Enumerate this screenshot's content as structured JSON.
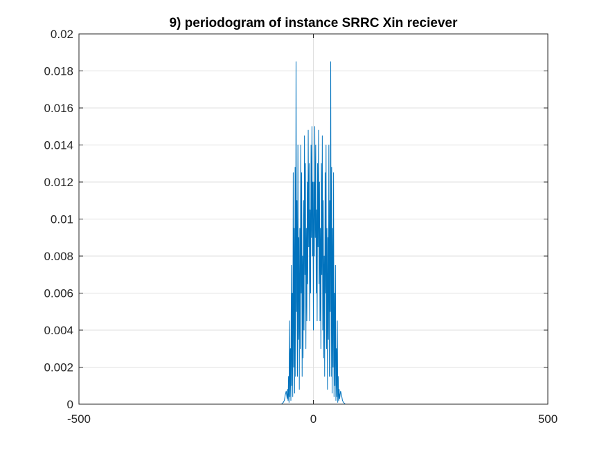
{
  "chart_data": {
    "type": "line",
    "title": "9) periodogram of instance SRRC Xin reciever",
    "xlabel": "",
    "ylabel": "",
    "xlim": [
      -500,
      500
    ],
    "ylim": [
      0,
      0.02
    ],
    "x_ticks": [
      -500,
      0,
      500
    ],
    "x_tick_labels": [
      "-500",
      "0",
      "500"
    ],
    "y_ticks": [
      0,
      0.002,
      0.004,
      0.006,
      0.008,
      0.01,
      0.012,
      0.014,
      0.016,
      0.018,
      0.02
    ],
    "y_tick_labels": [
      "0",
      "0.002",
      "0.004",
      "0.006",
      "0.008",
      "0.01",
      "0.012",
      "0.014",
      "0.016",
      "0.018",
      "0.02"
    ],
    "grid": true,
    "series": [
      {
        "color": "#0072BD",
        "x": [
          -500,
          -68,
          -64,
          -62,
          -60,
          -58,
          -56,
          -55,
          -54,
          -53,
          -52,
          -51,
          -50,
          -49,
          -48,
          -47,
          -46,
          -45,
          -44,
          -43,
          -42,
          -41,
          -40,
          -39,
          -38,
          -37,
          -36,
          -35,
          -34,
          -33,
          -32,
          -31,
          -30,
          -29,
          -28,
          -27,
          -26,
          -25,
          -24,
          -23,
          -22,
          -21,
          -20,
          -19,
          -18,
          -17,
          -16,
          -15,
          -14,
          -13,
          -12,
          -11,
          -10,
          -9,
          -8,
          -7,
          -6,
          -5,
          -4,
          -3,
          -2,
          -1,
          0,
          1,
          2,
          3,
          4,
          5,
          6,
          7,
          8,
          9,
          10,
          11,
          12,
          13,
          14,
          15,
          16,
          17,
          18,
          19,
          20,
          21,
          22,
          23,
          24,
          25,
          26,
          27,
          28,
          29,
          30,
          31,
          32,
          33,
          34,
          35,
          36,
          37,
          38,
          39,
          40,
          41,
          42,
          43,
          44,
          45,
          46,
          47,
          48,
          49,
          50,
          51,
          52,
          53,
          54,
          55,
          56,
          58,
          60,
          62,
          64,
          68,
          500
        ],
        "y": [
          0,
          0,
          0.0001,
          0.0002,
          0.0005,
          0.0007,
          0.0003,
          0.0008,
          0.0002,
          0.0015,
          0.0001,
          0.0045,
          0.0004,
          0.003,
          0.0002,
          0.0075,
          0.001,
          0.006,
          0.0004,
          0.0125,
          0.002,
          0.0095,
          0.0006,
          0.0128,
          0.0015,
          0.0185,
          0.005,
          0.011,
          0.0015,
          0.014,
          0.0035,
          0.009,
          0.0008,
          0.0095,
          0.003,
          0.014,
          0.006,
          0.0125,
          0.0015,
          0.008,
          0.0025,
          0.011,
          0.004,
          0.0145,
          0.007,
          0.013,
          0.003,
          0.0095,
          0.0045,
          0.012,
          0.0065,
          0.0148,
          0.0085,
          0.013,
          0.0045,
          0.0105,
          0.006,
          0.014,
          0.009,
          0.015,
          0.008,
          0.012,
          0.004,
          0.012,
          0.008,
          0.015,
          0.009,
          0.014,
          0.006,
          0.0105,
          0.0045,
          0.013,
          0.0085,
          0.0148,
          0.0065,
          0.012,
          0.0045,
          0.0095,
          0.003,
          0.013,
          0.007,
          0.0145,
          0.004,
          0.011,
          0.0025,
          0.008,
          0.0015,
          0.0125,
          0.006,
          0.014,
          0.003,
          0.0095,
          0.0008,
          0.009,
          0.0035,
          0.014,
          0.0015,
          0.011,
          0.005,
          0.0185,
          0.0015,
          0.0128,
          0.0006,
          0.0095,
          0.002,
          0.0125,
          0.0004,
          0.006,
          0.001,
          0.0075,
          0.0002,
          0.003,
          0.0004,
          0.0045,
          0.0001,
          0.0015,
          0.0002,
          0.0008,
          0.0003,
          0.0007,
          0.0005,
          0.0002,
          0.0001,
          0,
          0
        ]
      }
    ]
  }
}
